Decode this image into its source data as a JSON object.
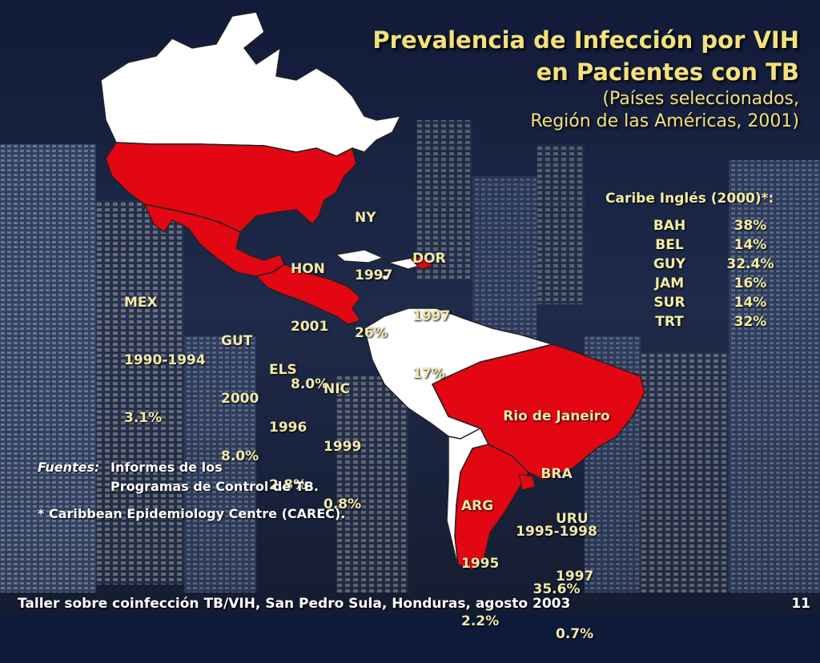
{
  "title": {
    "line1": "Prevalencia de Infección por VIH",
    "line2": "en Pacientes con TB",
    "line3": "(Países seleccionados,",
    "line4": "Región de las Américas, 2001)"
  },
  "map_labels": [
    {
      "id": "ny",
      "country": "NY",
      "year": "1997",
      "value": "26%"
    },
    {
      "id": "dor",
      "country": "DOR",
      "year": "1997",
      "value": "17%"
    },
    {
      "id": "hon",
      "country": "HON",
      "year": "2001",
      "value": "8.0%"
    },
    {
      "id": "mex",
      "country": "MEX",
      "year": "1990-1994",
      "value": "3.1%"
    },
    {
      "id": "gut",
      "country": "GUT",
      "year": "2000",
      "value": "8.0%"
    },
    {
      "id": "els",
      "country": "ELS",
      "year": "1996",
      "value": "2.8%"
    },
    {
      "id": "nic",
      "country": "NIC",
      "year": "1999",
      "value": "0.8%"
    },
    {
      "id": "bra",
      "city": "Rio de Janeiro",
      "country": "BRA",
      "year": "1995-1998",
      "value": "35.6%"
    },
    {
      "id": "arg",
      "country": "ARG",
      "year": "1995",
      "value": "2.2%"
    },
    {
      "id": "uru",
      "country": "URU",
      "year": "1997",
      "value": "0.7%"
    }
  ],
  "caribbean": {
    "heading": "Caribe Inglés (2000)*:",
    "rows": [
      {
        "code": "BAH",
        "value": "38%"
      },
      {
        "code": "BEL",
        "value": "14%"
      },
      {
        "code": "GUY",
        "value": "32.4%"
      },
      {
        "code": "JAM",
        "value": "16%"
      },
      {
        "code": "SUR",
        "value": "14%"
      },
      {
        "code": "TRT",
        "value": "32%"
      }
    ]
  },
  "sources": {
    "label": "Fuentes:",
    "line1": "Informes de los",
    "line2": "Programas de Control de TB.",
    "line3": "* Caribbean Epidemiology Centre (CAREC)."
  },
  "footer": {
    "text": "Taller sobre coinfección TB/VIH, San Pedro Sula, Honduras, agosto 2003",
    "page": "11"
  },
  "colors": {
    "highlight_red": "#e30613",
    "land_white": "#ffffff",
    "title_yellow": "#f3e27a",
    "label_yellow": "#f2e9ab",
    "background": "#0d1a3a"
  }
}
